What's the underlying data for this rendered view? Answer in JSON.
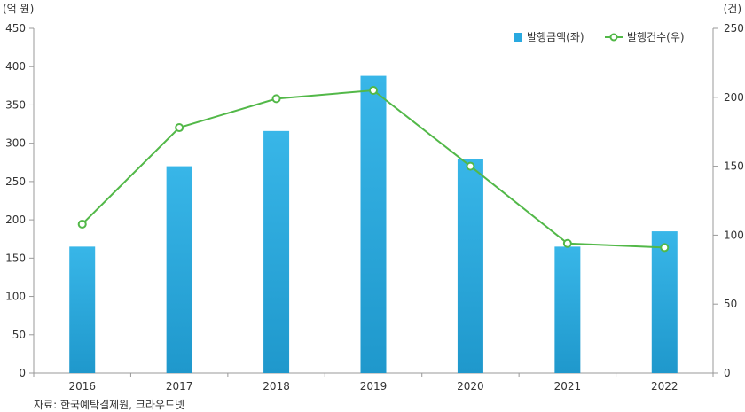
{
  "chart_data": {
    "type": "bar",
    "categories": [
      "2016",
      "2017",
      "2018",
      "2019",
      "2020",
      "2021",
      "2022"
    ],
    "series": [
      {
        "name": "발행금액(좌)",
        "type": "bar",
        "axis": "left",
        "color": "#29a9e0",
        "values": [
          165,
          270,
          316,
          388,
          279,
          165,
          185
        ]
      },
      {
        "name": "발행건수(우)",
        "type": "line",
        "axis": "right",
        "color": "#52b848",
        "values": [
          108,
          178,
          199,
          205,
          150,
          94,
          91
        ]
      }
    ],
    "y_left": {
      "unit": "(억 원)",
      "min": 0,
      "max": 450,
      "ticks": [
        0,
        50,
        100,
        150,
        200,
        250,
        300,
        350,
        400,
        450
      ]
    },
    "y_right": {
      "unit": "(건)",
      "min": 0,
      "max": 250,
      "ticks": [
        0,
        50,
        100,
        150,
        200,
        250
      ]
    },
    "grid": false,
    "legend_position": "top-right",
    "source": "자료: 한국예탁결제원, 크라우드넷"
  }
}
